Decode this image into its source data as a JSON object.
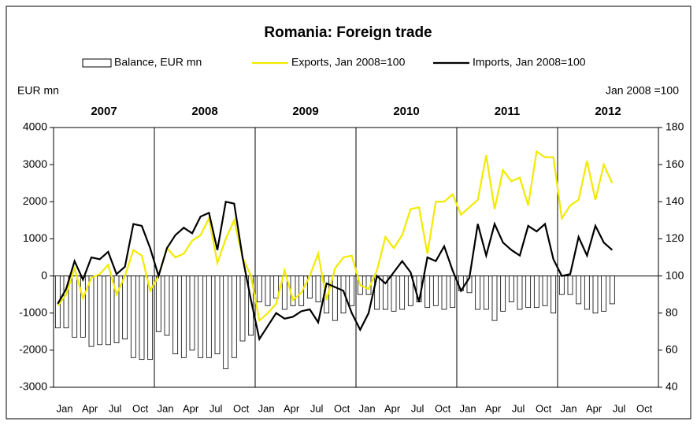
{
  "chart_data": {
    "type": "bar_line_combo",
    "title": "Romania: Foreign trade",
    "y_label": "EUR mn",
    "y2_label": "Jan 2008 =100",
    "years": [
      "2007",
      "2008",
      "2009",
      "2010",
      "2011",
      "2012"
    ],
    "categories": [
      "Jan",
      null,
      null,
      "Apr",
      null,
      null,
      "Jul",
      null,
      null,
      "Oct",
      null,
      null,
      "Jan",
      null,
      null,
      "Apr",
      null,
      null,
      "Jul",
      null,
      null,
      "Oct",
      null,
      null,
      "Jan",
      null,
      null,
      "Apr",
      null,
      null,
      "Jul",
      null,
      null,
      "Oct",
      null,
      null,
      "Jan",
      null,
      null,
      "Apr",
      null,
      null,
      "Jul",
      null,
      null,
      "Oct",
      null,
      null,
      "Jan",
      null,
      null,
      "Apr",
      null,
      null,
      "Jul",
      null,
      null,
      "Oct",
      null,
      null,
      "Jan",
      null,
      null,
      "Apr",
      null,
      null,
      "Jul",
      null,
      null,
      "Oct",
      null,
      null
    ],
    "series": [
      {
        "name": "Balance, EUR mn",
        "type": "bar",
        "color": "#ffffff",
        "values": [
          -1400,
          -1400,
          -1650,
          -1650,
          -1900,
          -1850,
          -1850,
          -1800,
          -1700,
          -2200,
          -2250,
          -2250,
          -1500,
          -1600,
          -2100,
          -2200,
          -2000,
          -2200,
          -2200,
          -2100,
          -2500,
          -2200,
          -1750,
          -1600,
          -700,
          -800,
          -600,
          -900,
          -800,
          -800,
          -600,
          -700,
          -1000,
          -1200,
          -1000,
          -800,
          -500,
          -500,
          -900,
          -900,
          -950,
          -900,
          -800,
          -700,
          -850,
          -800,
          -900,
          -850,
          -400,
          -450,
          -900,
          -900,
          -1200,
          -950,
          -700,
          -900,
          -850,
          -850,
          -800,
          -1000,
          -500,
          -500,
          -750,
          -900,
          -1000,
          -950,
          -750,
          null,
          null,
          null,
          null,
          null
        ]
      },
      {
        "name": "Exports, Jan 2008=100",
        "type": "line",
        "axis": "y2",
        "color": "#f2ea00",
        "values": [
          84,
          90,
          104,
          88,
          99,
          101,
          106,
          90,
          100,
          114,
          111,
          92,
          100,
          115,
          110,
          112,
          119,
          122,
          131,
          107,
          120,
          130,
          110,
          100,
          76,
          80,
          85,
          103,
          87,
          91,
          100,
          112,
          87,
          104,
          110,
          111,
          95,
          93,
          103,
          121,
          115,
          122,
          136,
          137,
          112,
          140,
          140,
          144,
          133,
          137,
          141,
          165,
          136,
          157,
          151,
          153,
          138,
          167,
          164,
          164,
          131,
          138,
          141,
          162,
          141,
          160,
          150,
          null,
          null,
          null,
          null,
          null
        ]
      },
      {
        "name": "Imports, Jan 2008=100",
        "type": "line",
        "axis": "y2",
        "color": "#000000",
        "values": [
          85,
          93,
          108,
          98,
          110,
          109,
          113,
          101,
          105,
          128,
          127,
          115,
          100,
          115,
          122,
          126,
          123,
          132,
          134,
          114,
          140,
          139,
          110,
          87,
          66,
          73,
          80,
          77,
          78,
          81,
          82,
          75,
          96,
          94,
          92,
          80,
          71,
          80,
          100,
          96,
          102,
          108,
          102,
          86,
          110,
          108,
          116,
          103,
          92,
          99,
          128,
          111,
          128,
          118,
          114,
          111,
          127,
          124,
          128,
          109,
          100,
          101,
          121,
          111,
          127,
          118,
          114,
          null,
          null,
          null,
          null,
          null
        ]
      }
    ],
    "ylim": [
      -3000,
      4000
    ],
    "yticks": [
      -3000,
      -2000,
      -1000,
      0,
      1000,
      2000,
      3000,
      4000
    ],
    "y2lim": [
      40,
      180
    ],
    "y2ticks": [
      40,
      60,
      80,
      100,
      120,
      140,
      160,
      180
    ]
  }
}
